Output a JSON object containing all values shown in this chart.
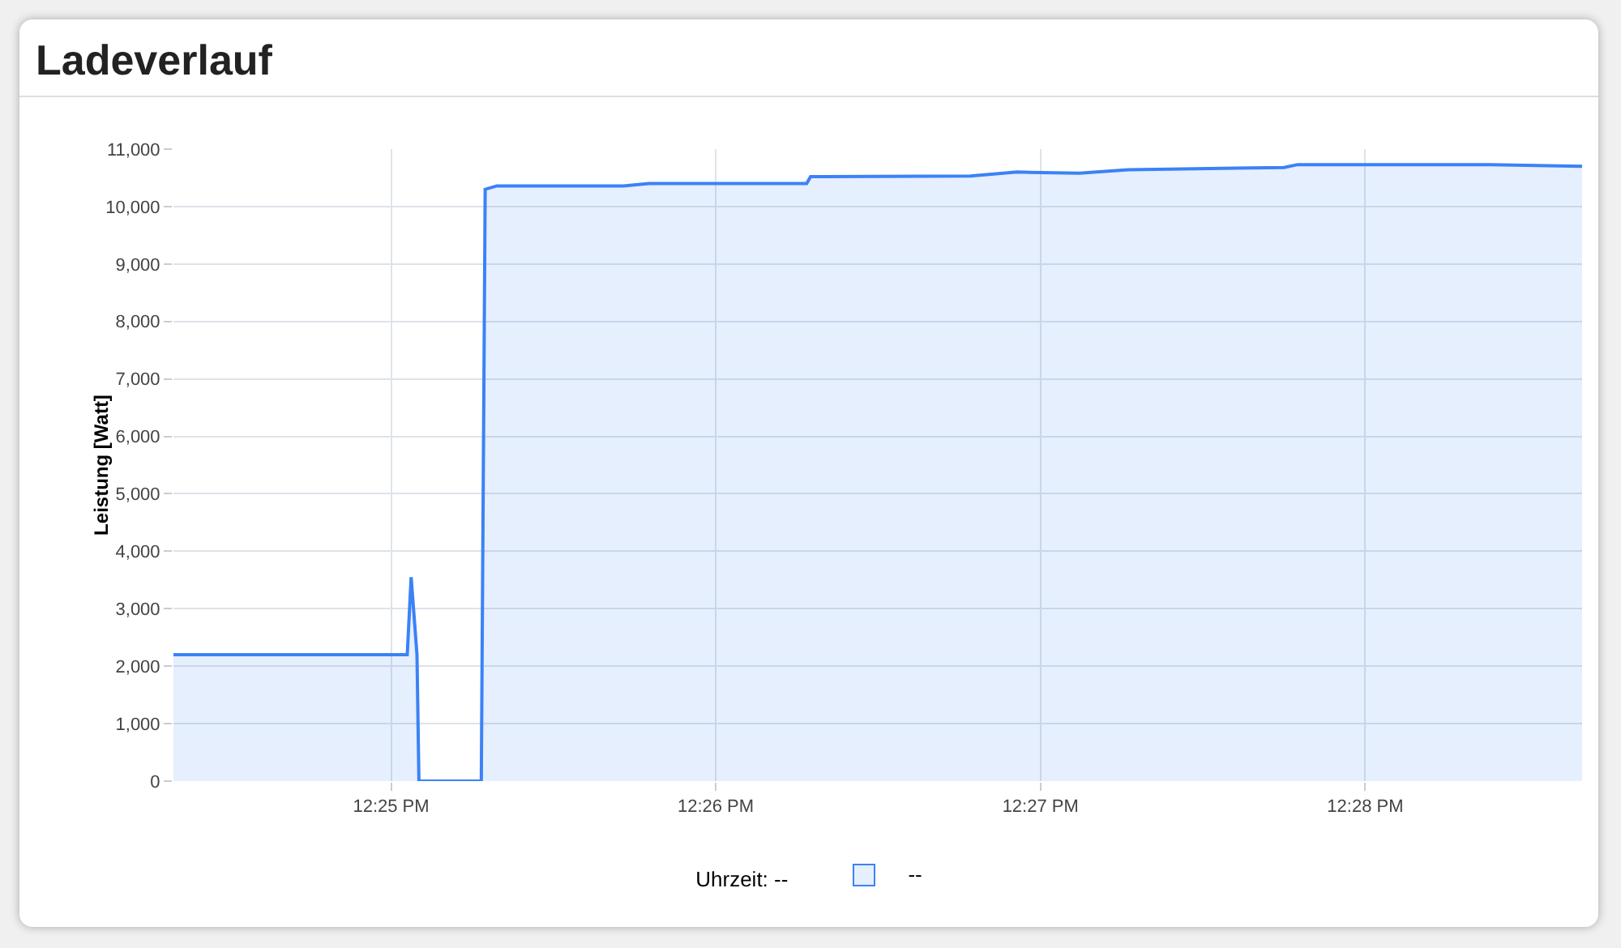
{
  "chart_data": {
    "type": "area",
    "title": "Ladeverlauf",
    "ylabel": "Leistung [Watt]",
    "annotations": [
      "Uhrzeit: --",
      "--"
    ],
    "x": [
      12.4055,
      12.4175,
      12.4177,
      12.418,
      12.4181,
      12.4213,
      12.4215,
      12.4221,
      12.4286,
      12.4299,
      12.438,
      12.4382,
      12.4464,
      12.4488,
      12.452,
      12.4545,
      12.4625,
      12.4632,
      12.4731,
      12.4778
    ],
    "series": [
      {
        "color": "#3b82f6",
        "values": [
          2200,
          2200,
          3550,
          2200,
          0,
          0,
          10300,
          10360,
          10360,
          10400,
          10400,
          10520,
          10530,
          10600,
          10580,
          10640,
          10680,
          10730,
          10730,
          10700
        ]
      }
    ],
    "xlim": [
      12.4055,
      12.4778
    ],
    "xticks": [
      {
        "value": 12.41667,
        "label": "12:25 PM"
      },
      {
        "value": 12.43333,
        "label": "12:26 PM"
      },
      {
        "value": 12.45,
        "label": "12:27 PM"
      },
      {
        "value": 12.46667,
        "label": "12:28 PM"
      }
    ],
    "ylim": [
      0,
      11000
    ],
    "yticks": [
      {
        "value": 0,
        "label": "0"
      },
      {
        "value": 1000,
        "label": "1,000"
      },
      {
        "value": 2000,
        "label": "2,000"
      },
      {
        "value": 3000,
        "label": "3,000"
      },
      {
        "value": 4000,
        "label": "4,000"
      },
      {
        "value": 5000,
        "label": "5,000"
      },
      {
        "value": 6000,
        "label": "6,000"
      },
      {
        "value": 7000,
        "label": "7,000"
      },
      {
        "value": 8000,
        "label": "8,000"
      },
      {
        "value": 9000,
        "label": "9,000"
      },
      {
        "value": 10000,
        "label": "10,000"
      },
      {
        "value": 11000,
        "label": "11,000"
      }
    ],
    "grid": true
  }
}
